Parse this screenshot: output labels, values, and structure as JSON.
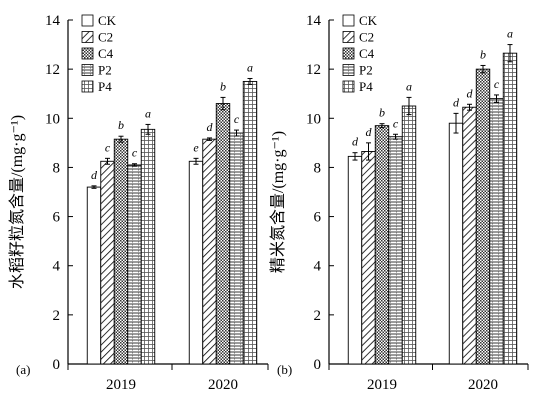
{
  "chart_data": [
    {
      "type": "bar",
      "panel": "(a)",
      "ylabel": "水稻籽粒氮含量/(mg·g⁻¹)",
      "ylim": [
        0,
        14
      ],
      "yticks": [
        "0",
        "2",
        "4",
        "6",
        "8",
        "10",
        "12",
        "14"
      ],
      "categories": [
        "2019",
        "2020"
      ],
      "series": [
        {
          "name": "CK",
          "values": [
            7.2,
            8.25
          ],
          "errors": [
            0.05,
            0.12
          ],
          "labels": [
            "d",
            "e"
          ]
        },
        {
          "name": "C2",
          "values": [
            8.25,
            9.15
          ],
          "errors": [
            0.12,
            0.05
          ],
          "labels": [
            "c",
            "d"
          ]
        },
        {
          "name": "C4",
          "values": [
            9.15,
            10.6
          ],
          "errors": [
            0.12,
            0.25
          ],
          "labels": [
            "b",
            "b"
          ]
        },
        {
          "name": "P2",
          "values": [
            8.1,
            9.4
          ],
          "errors": [
            0.05,
            0.12
          ],
          "labels": [
            "c",
            "c"
          ]
        },
        {
          "name": "P4",
          "values": [
            9.55,
            11.5
          ],
          "errors": [
            0.2,
            0.12
          ],
          "labels": [
            "a",
            "a"
          ]
        }
      ]
    },
    {
      "type": "bar",
      "panel": "(b)",
      "ylabel": "精米氮含量/(mg·g⁻¹)",
      "ylim": [
        0,
        14
      ],
      "yticks": [
        "0",
        "2",
        "4",
        "6",
        "8",
        "10",
        "12",
        "14"
      ],
      "categories": [
        "2019",
        "2020"
      ],
      "series": [
        {
          "name": "CK",
          "values": [
            8.45,
            9.8
          ],
          "errors": [
            0.15,
            0.4
          ],
          "labels": [
            "d",
            "d"
          ]
        },
        {
          "name": "C2",
          "values": [
            8.65,
            10.45
          ],
          "errors": [
            0.35,
            0.12
          ],
          "labels": [
            "d",
            "d"
          ]
        },
        {
          "name": "C4",
          "values": [
            9.7,
            12.0
          ],
          "errors": [
            0.08,
            0.15
          ],
          "labels": [
            "b",
            "b"
          ]
        },
        {
          "name": "P2",
          "values": [
            9.25,
            10.8
          ],
          "errors": [
            0.1,
            0.15
          ],
          "labels": [
            "c",
            "c"
          ]
        },
        {
          "name": "P4",
          "values": [
            10.5,
            12.65
          ],
          "errors": [
            0.35,
            0.35
          ],
          "labels": [
            "a",
            "a"
          ]
        }
      ]
    }
  ]
}
